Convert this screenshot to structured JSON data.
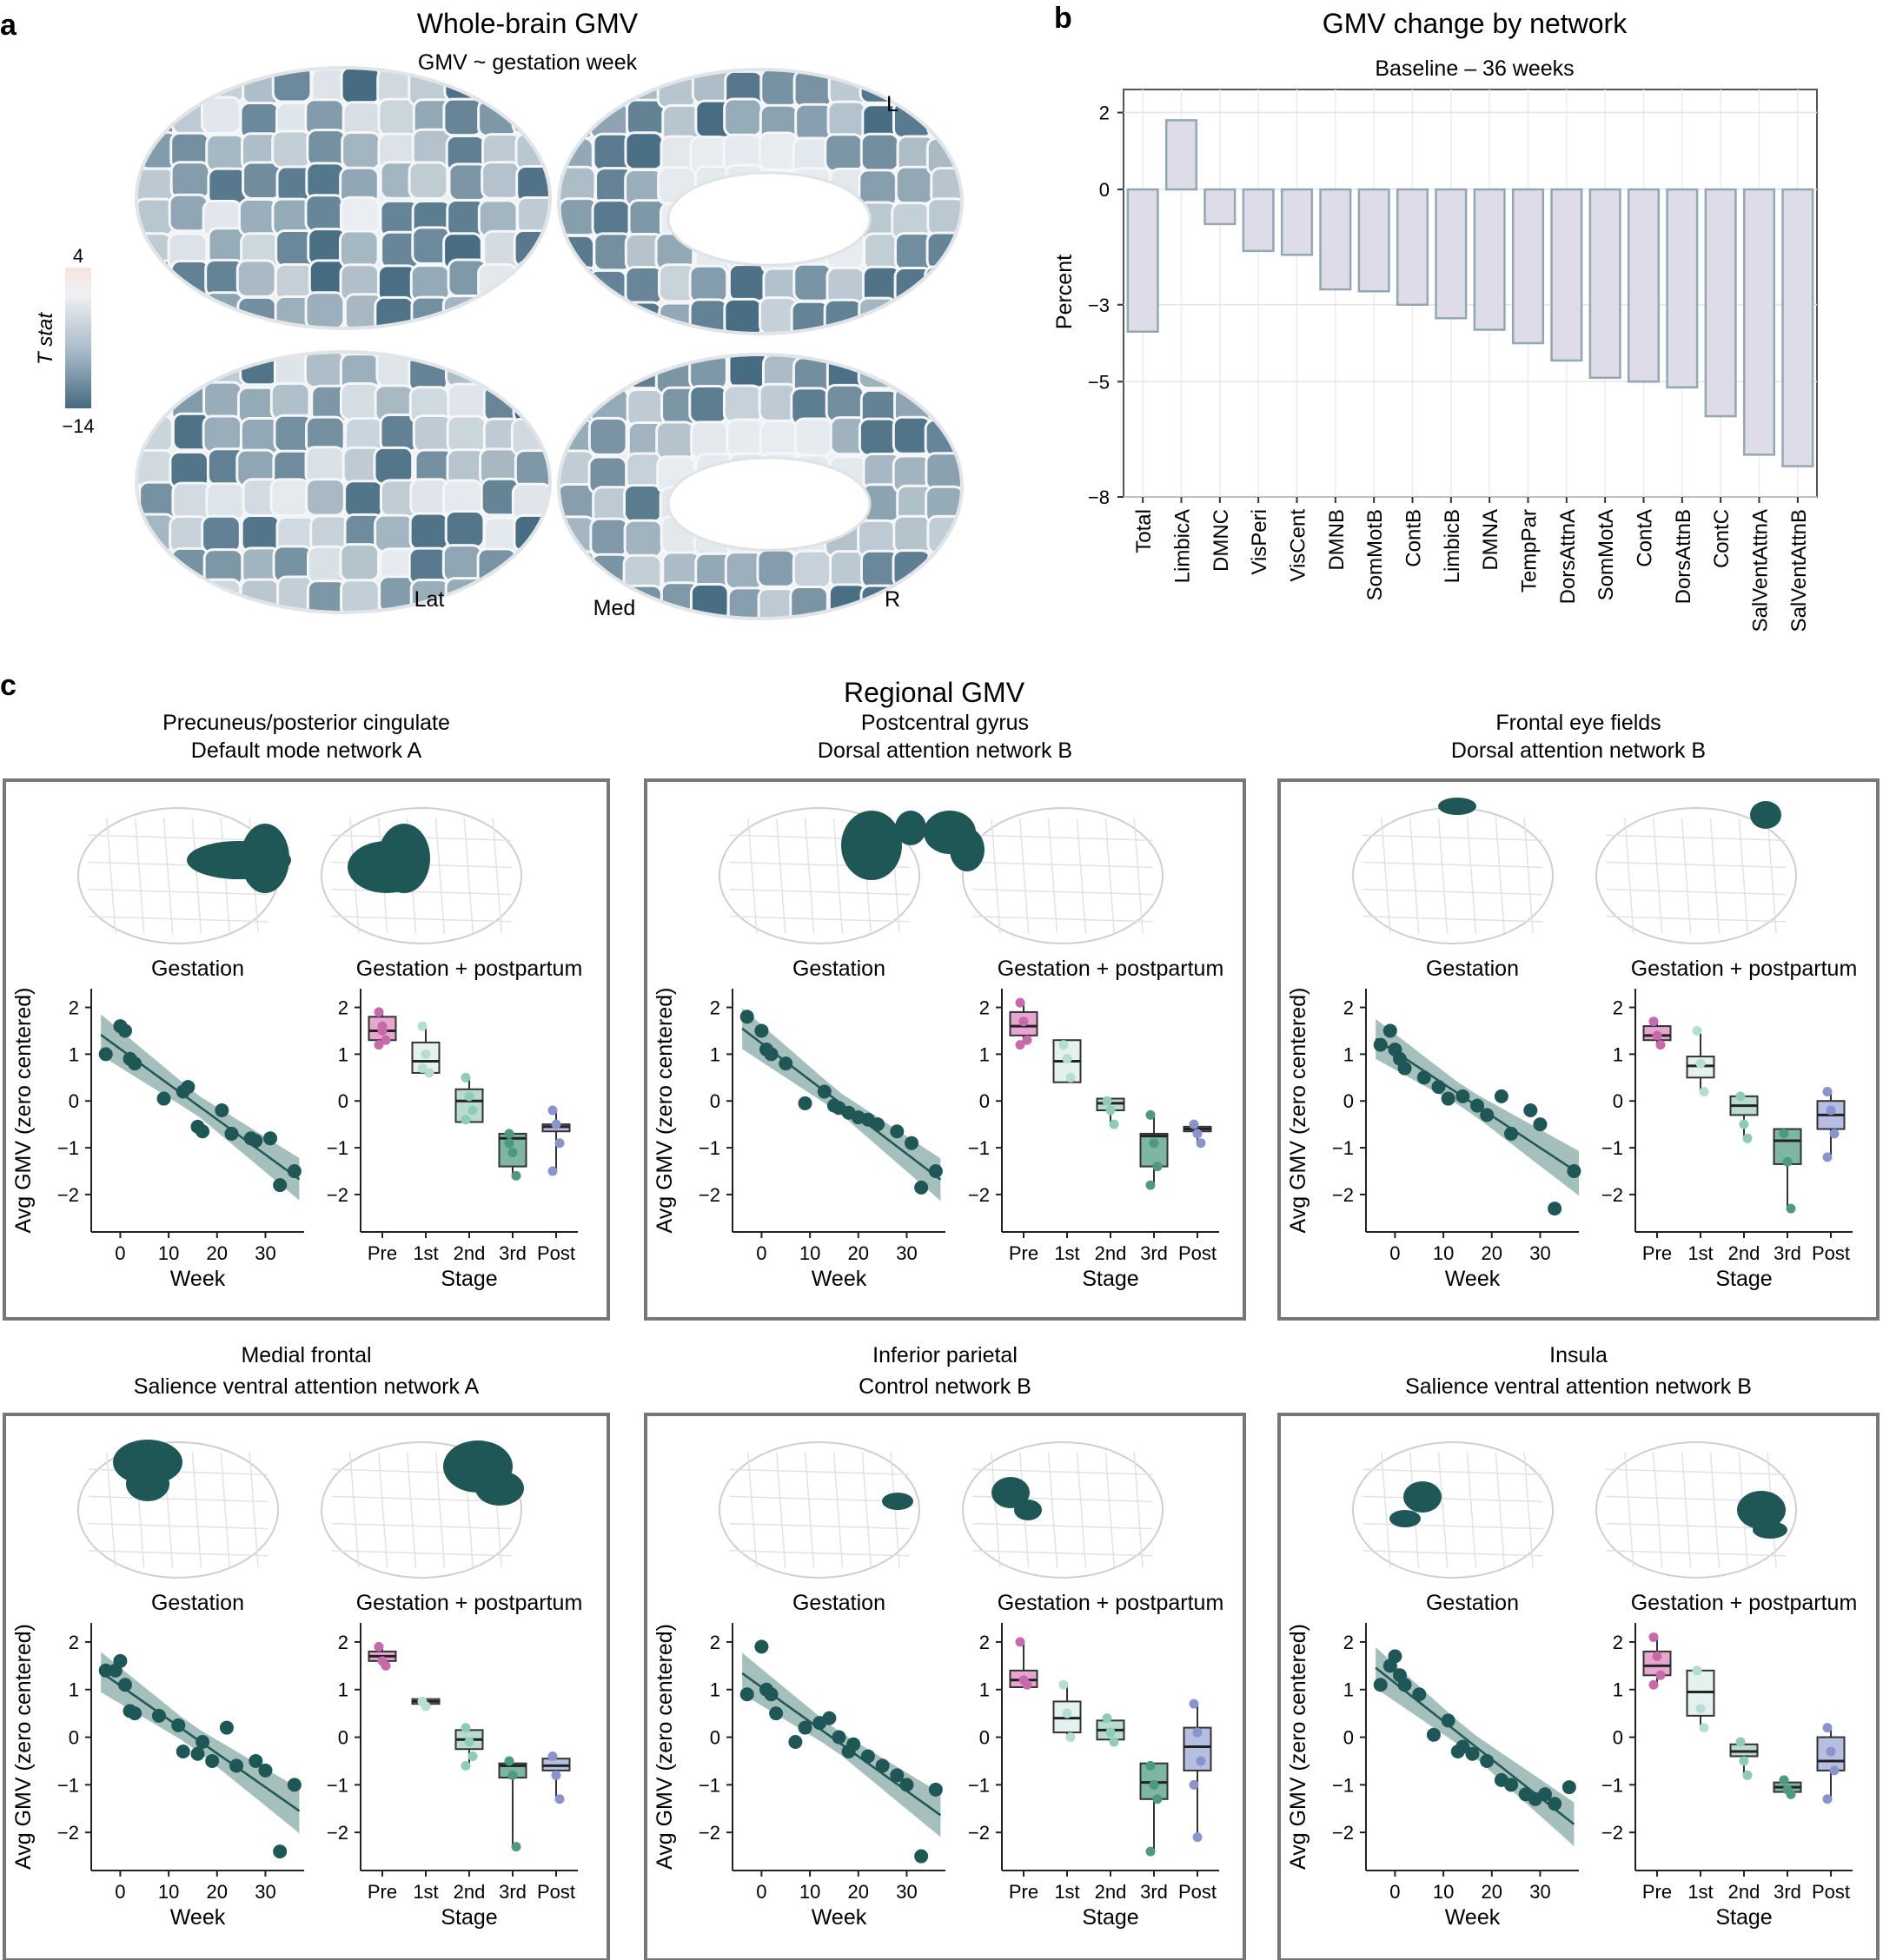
{
  "panel_labels": {
    "a": "a",
    "b": "b",
    "c": "c"
  },
  "panel_a": {
    "title": "Whole-brain GMV",
    "subtitle": "GMV ~ gestation week",
    "colorbar": {
      "label": "T stat",
      "max_label": "4",
      "min_label": "−14",
      "range": [
        -14,
        4
      ]
    },
    "hemi_labels": {
      "L": "L",
      "Lat": "Lat",
      "Med": "Med",
      "R": "R"
    }
  },
  "chart_data": [
    {
      "id": "network_bars",
      "type": "bar",
      "title": "GMV change by network",
      "subtitle": "Baseline – 36 weeks",
      "xlabel": "",
      "ylabel": "Percent",
      "ylim": [
        -8,
        2.6
      ],
      "yticks": [
        2,
        0,
        -3,
        -5,
        -8
      ],
      "ytick_labels": [
        "2",
        "0",
        "−3",
        "−5",
        "−8"
      ],
      "categories": [
        "Total",
        "LimbicA",
        "DMNC",
        "VisPeri",
        "VisCent",
        "DMNB",
        "SomMotB",
        "ContB",
        "LimbicB",
        "DMNA",
        "TempPar",
        "DorsAttnA",
        "SomMotA",
        "ContA",
        "DorsAttnB",
        "ContC",
        "SalVentAttnA",
        "SalVentAttnB"
      ],
      "values": [
        -3.7,
        1.8,
        -0.9,
        -1.6,
        -1.7,
        -2.6,
        -2.65,
        -3.0,
        -3.35,
        -3.65,
        -4.0,
        -4.45,
        -4.9,
        -5.0,
        -5.15,
        -5.9,
        -6.9,
        -7.2
      ],
      "grid": true
    },
    {
      "id": "regional_gmv",
      "type": "scatter",
      "title": "Regional GMV",
      "regions": [
        {
          "region": "Precuneus/posterior cingulate",
          "network": "Default mode network A",
          "scatter": {
            "x": [
              -3,
              0,
              1,
              2,
              3,
              9,
              13,
              14,
              16,
              17,
              21,
              23,
              27,
              28,
              31,
              33,
              36
            ],
            "y": [
              1.0,
              1.6,
              1.5,
              0.9,
              0.8,
              0.05,
              0.2,
              0.3,
              -0.55,
              -0.65,
              -0.2,
              -0.7,
              -0.8,
              -0.85,
              -0.8,
              -1.8,
              -1.5
            ]
          },
          "box": {
            "Pre": [
              1.3,
              1.5,
              1.8
            ],
            "1st": [
              0.6,
              0.85,
              1.25
            ],
            "2nd": [
              -0.45,
              0.0,
              0.25
            ],
            "3rd": [
              -1.4,
              -0.8,
              -0.7
            ],
            "Post": [
              -0.65,
              -0.55,
              -0.5
            ]
          },
          "pts": {
            "Pre": [
              1.9,
              1.6,
              1.3,
              1.2,
              1.5
            ],
            "1st": [
              1.6,
              1.0,
              0.6,
              0.7
            ],
            "2nd": [
              0.5,
              0.1,
              -0.2,
              -0.4
            ],
            "3rd": [
              -0.7,
              -1.1,
              -1.6,
              -0.9
            ],
            "Post": [
              -0.2,
              -0.5,
              -0.9,
              -1.5
            ]
          }
        },
        {
          "region": "Postcentral gyrus",
          "network": "Dorsal attention network B",
          "scatter": {
            "x": [
              -3,
              0,
              1,
              2,
              5,
              9,
              13,
              15,
              16,
              18,
              20,
              22,
              24,
              28,
              31,
              33,
              36
            ],
            "y": [
              1.8,
              1.5,
              1.1,
              1.0,
              0.8,
              -0.05,
              0.2,
              -0.1,
              -0.15,
              -0.25,
              -0.35,
              -0.4,
              -0.5,
              -0.65,
              -0.9,
              -1.85,
              -1.5
            ]
          },
          "box": {
            "Pre": [
              1.4,
              1.6,
              1.9
            ],
            "1st": [
              0.4,
              0.85,
              1.3
            ],
            "2nd": [
              -0.2,
              -0.05,
              0.05
            ],
            "3rd": [
              -1.4,
              -0.75,
              -0.7
            ],
            "Post": [
              -0.65,
              -0.6,
              -0.55
            ]
          },
          "pts": {
            "Pre": [
              2.1,
              1.7,
              1.3,
              1.2
            ],
            "1st": [
              1.2,
              0.9,
              0.5
            ],
            "2nd": [
              0.0,
              -0.2,
              -0.5
            ],
            "3rd": [
              -0.3,
              -0.9,
              -1.4,
              -1.8
            ],
            "Post": [
              -0.5,
              -0.7,
              -0.9
            ]
          }
        },
        {
          "region": "Frontal eye fields",
          "network": "Dorsal attention network B",
          "scatter": {
            "x": [
              -3,
              -1,
              0,
              1,
              2,
              6,
              9,
              11,
              14,
              17,
              19,
              22,
              24,
              28,
              30,
              33,
              37
            ],
            "y": [
              1.2,
              1.5,
              1.1,
              0.9,
              0.7,
              0.5,
              0.3,
              0.05,
              0.1,
              -0.1,
              -0.3,
              0.1,
              -0.7,
              -0.2,
              -0.5,
              -2.3,
              -1.5
            ]
          },
          "box": {
            "Pre": [
              1.3,
              1.4,
              1.6
            ],
            "1st": [
              0.5,
              0.75,
              0.95
            ],
            "2nd": [
              -0.3,
              -0.1,
              0.1
            ],
            "3rd": [
              -1.35,
              -0.85,
              -0.6
            ],
            "Post": [
              -0.6,
              -0.3,
              0.0
            ]
          },
          "pts": {
            "Pre": [
              1.7,
              1.4,
              1.2
            ],
            "1st": [
              1.5,
              0.8,
              0.2
            ],
            "2nd": [
              0.1,
              -0.5,
              -0.8
            ],
            "3rd": [
              -0.7,
              -1.3,
              -2.3
            ],
            "Post": [
              0.2,
              -0.2,
              -0.7,
              -1.2
            ]
          }
        },
        {
          "region": "Medial frontal",
          "network": "Salience ventral attention network A",
          "scatter": {
            "x": [
              -3,
              -1,
              0,
              1,
              2,
              3,
              8,
              12,
              13,
              16,
              17,
              19,
              22,
              24,
              28,
              30,
              33,
              36
            ],
            "y": [
              1.4,
              1.4,
              1.6,
              1.1,
              0.55,
              0.5,
              0.45,
              0.25,
              -0.3,
              -0.35,
              -0.1,
              -0.5,
              0.2,
              -0.6,
              -0.5,
              -0.7,
              -2.4,
              -1.0
            ]
          },
          "box": {
            "Pre": [
              1.6,
              1.7,
              1.8
            ],
            "1st": [
              0.7,
              0.75,
              0.8
            ],
            "2nd": [
              -0.25,
              -0.05,
              0.15
            ],
            "3rd": [
              -0.85,
              -0.6,
              -0.55
            ],
            "Post": [
              -0.7,
              -0.6,
              -0.45
            ]
          },
          "pts": {
            "Pre": [
              1.9,
              1.6,
              1.5
            ],
            "1st": [
              0.75,
              0.65
            ],
            "2nd": [
              0.2,
              -0.1,
              -0.4,
              -0.6
            ],
            "3rd": [
              -0.5,
              -0.8,
              -2.3
            ],
            "Post": [
              -0.4,
              -0.8,
              -1.3
            ]
          }
        },
        {
          "region": "Inferior parietal",
          "network": "Control network B",
          "scatter": {
            "x": [
              -3,
              0,
              1,
              2,
              3,
              7,
              9,
              12,
              14,
              16,
              18,
              19,
              22,
              25,
              28,
              30,
              33,
              36
            ],
            "y": [
              0.9,
              1.9,
              1.0,
              0.9,
              0.5,
              -0.1,
              0.2,
              0.3,
              0.4,
              0.0,
              -0.3,
              -0.15,
              -0.4,
              -0.6,
              -0.8,
              -1.0,
              -2.5,
              -1.1
            ]
          },
          "box": {
            "Pre": [
              1.05,
              1.2,
              1.4
            ],
            "1st": [
              0.1,
              0.4,
              0.75
            ],
            "2nd": [
              -0.05,
              0.15,
              0.35
            ],
            "3rd": [
              -1.3,
              -0.95,
              -0.55
            ],
            "Post": [
              -0.7,
              -0.2,
              0.2
            ]
          },
          "pts": {
            "Pre": [
              2.0,
              1.2,
              1.1
            ],
            "1st": [
              1.1,
              0.5,
              0.0
            ],
            "2nd": [
              0.4,
              0.1,
              -0.1
            ],
            "3rd": [
              -0.6,
              -1.0,
              -1.3,
              -2.4
            ],
            "Post": [
              0.7,
              0.1,
              -0.5,
              -1.0,
              -2.1
            ]
          }
        },
        {
          "region": "Insula",
          "network": "Salience ventral attention network B",
          "scatter": {
            "x": [
              -3,
              -1,
              0,
              1,
              2,
              5,
              8,
              11,
              13,
              14,
              16,
              19,
              22,
              24,
              27,
              29,
              31,
              33,
              36
            ],
            "y": [
              1.1,
              1.5,
              1.7,
              1.3,
              1.1,
              0.9,
              0.05,
              0.35,
              -0.3,
              -0.2,
              -0.35,
              -0.5,
              -0.9,
              -1.0,
              -1.2,
              -1.3,
              -1.2,
              -1.4,
              -1.05
            ]
          },
          "box": {
            "Pre": [
              1.3,
              1.5,
              1.8
            ],
            "1st": [
              0.45,
              0.95,
              1.4
            ],
            "2nd": [
              -0.4,
              -0.3,
              -0.15
            ],
            "3rd": [
              -1.15,
              -1.05,
              -0.95
            ],
            "Post": [
              -0.7,
              -0.5,
              0.0
            ]
          },
          "pts": {
            "Pre": [
              2.1,
              1.7,
              1.3,
              1.1
            ],
            "1st": [
              1.4,
              0.6,
              0.2
            ],
            "2nd": [
              -0.1,
              -0.5,
              -0.8
            ],
            "3rd": [
              -0.9,
              -1.1,
              -1.2
            ],
            "Post": [
              0.2,
              -0.3,
              -0.7,
              -1.3
            ]
          }
        }
      ],
      "stages": [
        "Pre",
        "1st",
        "2nd",
        "3rd",
        "Post"
      ],
      "scatter_xticks": [
        0,
        10,
        20,
        30
      ],
      "scatter_xlim": [
        -6,
        38
      ],
      "ylim": [
        -2.8,
        2.4
      ],
      "yticks": [
        2,
        1,
        0,
        -1,
        -2
      ],
      "ytick_labels": [
        "2",
        "1",
        "0",
        "−1",
        "−2"
      ],
      "xlabel_scatter": "Week",
      "xlabel_box": "Stage",
      "ylabel": "Avg GMV (zero centered)",
      "subtitle_scatter": "Gestation",
      "subtitle_box": "Gestation + postpartum"
    }
  ],
  "colors": {
    "dark_teal": "#1f5656",
    "ribbon": "#87a9a6",
    "bar_fill": "#dedce8",
    "bar_edge": "#93a7b3",
    "box_colors": [
      "#e6a6cf",
      "#e3f1ef",
      "#b9dccf",
      "#7db7a2",
      "#b6bee2"
    ],
    "dot_colors": [
      "#c76aa9",
      "#b6ddd2",
      "#8fcbb8",
      "#4d9a81",
      "#8a94cc"
    ],
    "brain_low": "#456a80",
    "brain_high": "#f6e7e4",
    "frame": "#777777"
  }
}
